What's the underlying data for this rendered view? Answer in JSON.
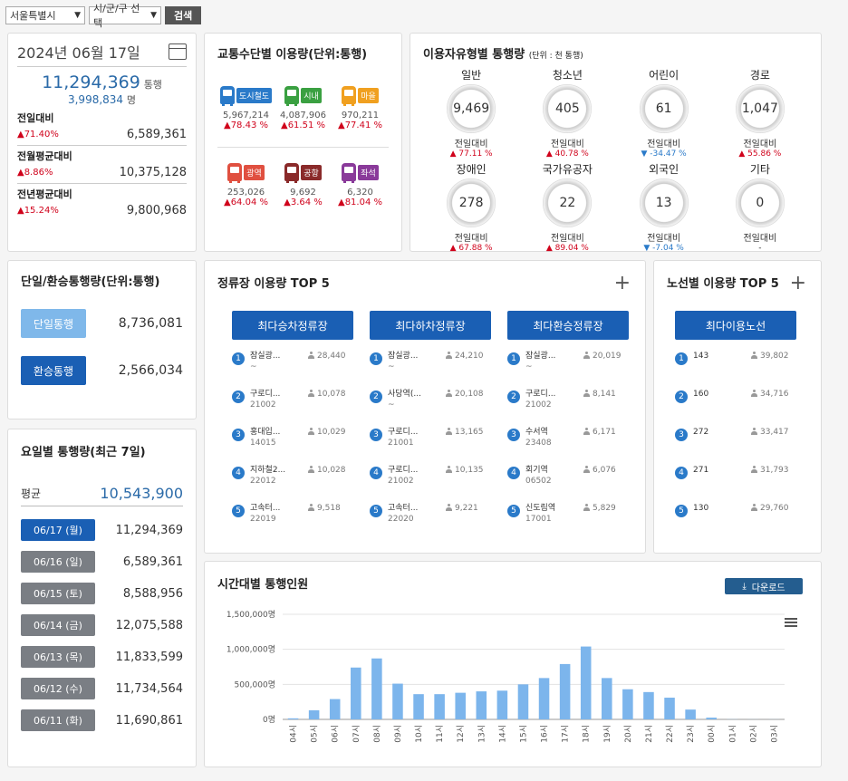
{
  "filters": {
    "region": "서울특별시",
    "district": "시/군/구 선택",
    "search_label": "검색"
  },
  "summary": {
    "date": "2024년 06월 17일",
    "total": "11,294,369",
    "total_unit": "통행",
    "persons": "3,998,834",
    "persons_unit": "명",
    "comparisons": [
      {
        "label": "전일대비",
        "pct": "▲71.40%",
        "value": "6,589,361"
      },
      {
        "label": "전월평균대비",
        "pct": "▲8.86%",
        "value": "10,375,128"
      },
      {
        "label": "전년평균대비",
        "pct": "▲15.24%",
        "value": "9,800,968"
      }
    ]
  },
  "modes": {
    "title": "교통수단별 이용량(단위:통행)",
    "items": [
      {
        "name": "도시철도",
        "color": "#2a7ac9",
        "value": "5,967,214",
        "pct": "▲78.43 %"
      },
      {
        "name": "시내",
        "color": "#3aa041",
        "value": "4,087,906",
        "pct": "▲61.51 %"
      },
      {
        "name": "마을",
        "color": "#f0a020",
        "value": "970,211",
        "pct": "▲77.41 %"
      },
      {
        "name": "광역",
        "color": "#e05040",
        "value": "253,026",
        "pct": "▲64.04 %"
      },
      {
        "name": "공항",
        "color": "#8a2a2a",
        "value": "9,692",
        "pct": "▲3.64 %"
      },
      {
        "name": "좌석",
        "color": "#8a3a9a",
        "value": "6,320",
        "pct": "▲81.04 %"
      }
    ]
  },
  "user_types": {
    "title": "이용자유형별 통행량",
    "unit": "(단위 : 천 통행)",
    "items": [
      {
        "name": "일반",
        "value": "9,469",
        "cmp": "전일대비",
        "pct": "▲ 77.11 %",
        "dir": "up"
      },
      {
        "name": "청소년",
        "value": "405",
        "cmp": "전일대비",
        "pct": "▲ 40.78 %",
        "dir": "up"
      },
      {
        "name": "어린이",
        "value": "61",
        "cmp": "전일대비",
        "pct": "▼ -34.47 %",
        "dir": "down"
      },
      {
        "name": "경로",
        "value": "1,047",
        "cmp": "전일대비",
        "pct": "▲ 55.86 %",
        "dir": "up"
      },
      {
        "name": "장애인",
        "value": "278",
        "cmp": "전일대비",
        "pct": "▲ 67.88 %",
        "dir": "up"
      },
      {
        "name": "국가유공자",
        "value": "22",
        "cmp": "전일대비",
        "pct": "▲ 89.04 %",
        "dir": "up"
      },
      {
        "name": "외국인",
        "value": "13",
        "cmp": "전일대비",
        "pct": "▼ -7.04 %",
        "dir": "down"
      },
      {
        "name": "기타",
        "value": "0",
        "cmp": "전일대비",
        "pct": "-",
        "dir": "none"
      }
    ]
  },
  "trip_type": {
    "title": "단일/환승통행량(단위:통행)",
    "single_label": "단일통행",
    "single_value": "8,736,081",
    "transfer_label": "환승통행",
    "transfer_value": "2,566,034"
  },
  "weekday": {
    "title": "요일별 통행량(최근 7일)",
    "avg_label": "평균",
    "avg_value": "10,543,900",
    "days": [
      {
        "label": "06/17 (월)",
        "value": "11,294,369"
      },
      {
        "label": "06/16 (일)",
        "value": "6,589,361"
      },
      {
        "label": "06/15 (토)",
        "value": "8,588,956"
      },
      {
        "label": "06/14 (금)",
        "value": "12,075,588"
      },
      {
        "label": "06/13 (목)",
        "value": "11,833,599"
      },
      {
        "label": "06/12 (수)",
        "value": "11,734,564"
      },
      {
        "label": "06/11 (화)",
        "value": "11,690,861"
      }
    ]
  },
  "stations": {
    "title": "정류장 이용량 TOP 5",
    "plus": "+",
    "columns": [
      {
        "button": "최다승차정류장",
        "items": [
          {
            "rank": "1",
            "name": "잠실광...",
            "code": "~",
            "count": "28,440"
          },
          {
            "rank": "2",
            "name": "구로디...",
            "code": "21002",
            "count": "10,078"
          },
          {
            "rank": "3",
            "name": "홍대입...",
            "code": "14015",
            "count": "10,029"
          },
          {
            "rank": "4",
            "name": "지하철2...",
            "code": "22012",
            "count": "10,028"
          },
          {
            "rank": "5",
            "name": "고속터...",
            "code": "22019",
            "count": "9,518"
          }
        ]
      },
      {
        "button": "최다하차정류장",
        "items": [
          {
            "rank": "1",
            "name": "잠실광...",
            "code": "~",
            "count": "24,210"
          },
          {
            "rank": "2",
            "name": "사당역(...",
            "code": "~",
            "count": "20,108"
          },
          {
            "rank": "3",
            "name": "구로디...",
            "code": "21001",
            "count": "13,165"
          },
          {
            "rank": "4",
            "name": "구로디...",
            "code": "21002",
            "count": "10,135"
          },
          {
            "rank": "5",
            "name": "고속터...",
            "code": "22020",
            "count": "9,221"
          }
        ]
      },
      {
        "button": "최다환승정류장",
        "items": [
          {
            "rank": "1",
            "name": "잠실광...",
            "code": "~",
            "count": "20,019"
          },
          {
            "rank": "2",
            "name": "구로디...",
            "code": "21002",
            "count": "8,141"
          },
          {
            "rank": "3",
            "name": "수서역",
            "code": "23408",
            "count": "6,171"
          },
          {
            "rank": "4",
            "name": "회기역",
            "code": "06502",
            "count": "6,076"
          },
          {
            "rank": "5",
            "name": "신도림역",
            "code": "17001",
            "count": "5,829"
          }
        ]
      }
    ]
  },
  "routes": {
    "title": "노선별 이용량 TOP 5",
    "plus": "+",
    "button": "최다이용노선",
    "items": [
      {
        "rank": "1",
        "name": "143",
        "count": "39,802"
      },
      {
        "rank": "2",
        "name": "160",
        "count": "34,716"
      },
      {
        "rank": "3",
        "name": "272",
        "count": "33,417"
      },
      {
        "rank": "4",
        "name": "271",
        "count": "31,793"
      },
      {
        "rank": "5",
        "name": "130",
        "count": "29,760"
      }
    ]
  },
  "hourly": {
    "title": "시간대별 통행인원",
    "download_label": "다운로드"
  },
  "chart_data": {
    "type": "bar",
    "title": "시간대별 통행인원",
    "categories": [
      "04시",
      "05시",
      "06시",
      "07시",
      "08시",
      "09시",
      "10시",
      "11시",
      "12시",
      "13시",
      "14시",
      "15시",
      "16시",
      "17시",
      "18시",
      "19시",
      "20시",
      "21시",
      "22시",
      "23시",
      "00시",
      "01시",
      "02시",
      "03시"
    ],
    "values": [
      15000,
      130000,
      290000,
      740000,
      870000,
      510000,
      360000,
      360000,
      380000,
      400000,
      410000,
      500000,
      590000,
      790000,
      1040000,
      590000,
      430000,
      390000,
      310000,
      140000,
      25000,
      2000,
      1000,
      1000
    ],
    "ylim": [
      0,
      1500000
    ],
    "yticks": [
      "0명",
      "500,000명",
      "1,000,000명",
      "1,500,000명"
    ],
    "color": "#7cb5ec",
    "grid": true
  }
}
